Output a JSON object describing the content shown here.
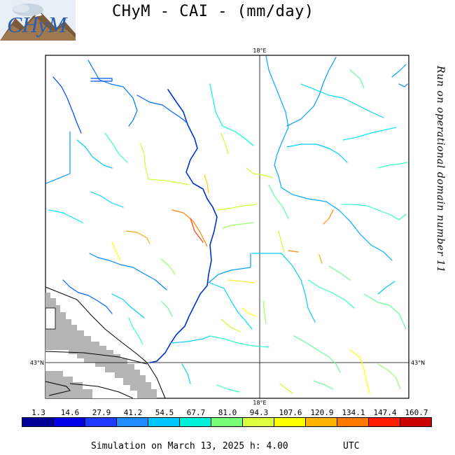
{
  "header": {
    "title": "CHyM - CAI - (mm/day)",
    "logo_text": "CHyM"
  },
  "map": {
    "side_label": "Run on operational domain number 11",
    "meridian_top_label": "18°E",
    "meridian_bottom_label": "18°E",
    "parallel_left_label": "43°N",
    "parallel_right_label": "43°N",
    "river_palette": [
      "#0000a0",
      "#0033ff",
      "#0099ff",
      "#00ccff",
      "#00ffcc",
      "#66ff66",
      "#ccff33",
      "#ffff00",
      "#ffcc00",
      "#ff8800",
      "#ff4400"
    ],
    "land_mask_color": "#b4b4b4"
  },
  "legend": {
    "ticks": [
      "1.3",
      "14.6",
      "27.9",
      "41.2",
      "54.5",
      "67.7",
      "81.0",
      "94.3",
      "107.6",
      "120.9",
      "134.1",
      "147.4",
      "160.7"
    ],
    "colors": [
      "#000096",
      "#0000e6",
      "#1e3cff",
      "#1e8cff",
      "#00c8ff",
      "#00f0dc",
      "#78ff78",
      "#dcff3c",
      "#ffff00",
      "#ffb400",
      "#ff7800",
      "#ff1e00",
      "#c80000"
    ]
  },
  "footer": {
    "simulation_text": "Simulation on March 13, 2025 h: 4.00",
    "timezone": "UTC"
  }
}
